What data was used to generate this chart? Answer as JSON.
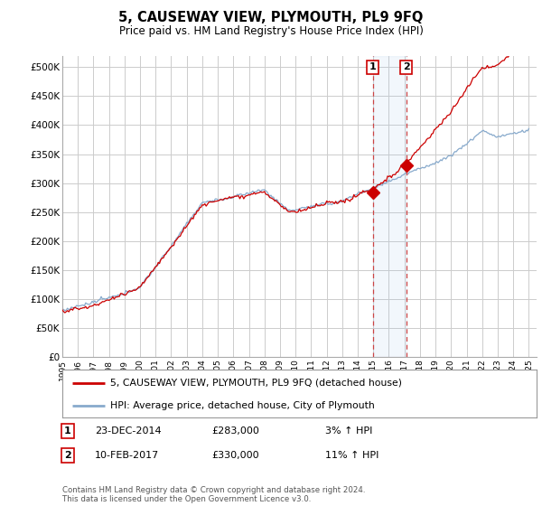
{
  "title": "5, CAUSEWAY VIEW, PLYMOUTH, PL9 9FQ",
  "subtitle": "Price paid vs. HM Land Registry's House Price Index (HPI)",
  "ylabel_ticks": [
    "£0",
    "£50K",
    "£100K",
    "£150K",
    "£200K",
    "£250K",
    "£300K",
    "£350K",
    "£400K",
    "£450K",
    "£500K"
  ],
  "ytick_vals": [
    0,
    50000,
    100000,
    150000,
    200000,
    250000,
    300000,
    350000,
    400000,
    450000,
    500000
  ],
  "ylim": [
    0,
    520000
  ],
  "xlim_start": 1995,
  "xlim_end": 2025.5,
  "red_line_color": "#cc0000",
  "blue_line_color": "#88aacc",
  "background_color": "#ffffff",
  "grid_color": "#cccccc",
  "legend_label_red": "5, CAUSEWAY VIEW, PLYMOUTH, PL9 9FQ (detached house)",
  "legend_label_blue": "HPI: Average price, detached house, City of Plymouth",
  "sale1_date": "23-DEC-2014",
  "sale1_price": 283000,
  "sale1_pct": "3% ↑ HPI",
  "sale1_year": 2014.97,
  "sale2_date": "10-FEB-2017",
  "sale2_price": 330000,
  "sale2_pct": "11% ↑ HPI",
  "sale2_year": 2017.12,
  "footnote": "Contains HM Land Registry data © Crown copyright and database right 2024.\nThis data is licensed under the Open Government Licence v3.0."
}
